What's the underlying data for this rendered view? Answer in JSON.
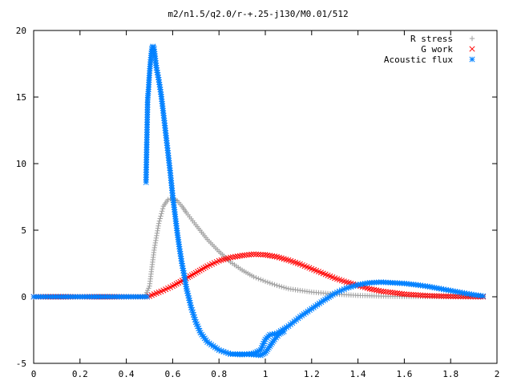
{
  "chart_data": {
    "type": "scatter",
    "title": "m2/n1.5/q2.0/r-+.25-j130/M0.01/512",
    "xlabel": "",
    "ylabel": "",
    "xlim": [
      0,
      2
    ],
    "ylim": [
      -5,
      20
    ],
    "xticks": [
      "0",
      "0.2",
      "0.4",
      "0.6",
      "0.8",
      "1",
      "1.2",
      "1.4",
      "1.6",
      "1.8",
      "2"
    ],
    "yticks": [
      "20",
      "15",
      "10",
      "5",
      "0",
      "-5"
    ],
    "legend_position": "top-right",
    "grid": false,
    "series": [
      {
        "name": "R stress",
        "marker": "plus",
        "color": "#a0a0a0",
        "points": [
          [
            0,
            0
          ],
          [
            0.1,
            0
          ],
          [
            0.2,
            0
          ],
          [
            0.3,
            0
          ],
          [
            0.4,
            0
          ],
          [
            0.48,
            0
          ],
          [
            0.5,
            0.8
          ],
          [
            0.52,
            3.5
          ],
          [
            0.54,
            5.5
          ],
          [
            0.56,
            6.8
          ],
          [
            0.58,
            7.3
          ],
          [
            0.6,
            7.4
          ],
          [
            0.62,
            7.2
          ],
          [
            0.64,
            6.8
          ],
          [
            0.66,
            6.3
          ],
          [
            0.7,
            5.4
          ],
          [
            0.75,
            4.3
          ],
          [
            0.8,
            3.4
          ],
          [
            0.85,
            2.6
          ],
          [
            0.9,
            2.0
          ],
          [
            0.95,
            1.5
          ],
          [
            1.0,
            1.15
          ],
          [
            1.05,
            0.85
          ],
          [
            1.1,
            0.6
          ],
          [
            1.2,
            0.35
          ],
          [
            1.3,
            0.2
          ],
          [
            1.4,
            0.1
          ],
          [
            1.5,
            0.05
          ],
          [
            1.6,
            0.02
          ],
          [
            1.7,
            0.01
          ],
          [
            1.8,
            0
          ],
          [
            1.94,
            0
          ]
        ]
      },
      {
        "name": "G work",
        "marker": "cross",
        "color": "#ff0000",
        "points": [
          [
            0,
            0
          ],
          [
            0.2,
            0
          ],
          [
            0.4,
            0
          ],
          [
            0.49,
            0
          ],
          [
            0.5,
            0.05
          ],
          [
            0.52,
            0.2
          ],
          [
            0.55,
            0.4
          ],
          [
            0.6,
            0.8
          ],
          [
            0.65,
            1.3
          ],
          [
            0.7,
            1.8
          ],
          [
            0.75,
            2.3
          ],
          [
            0.8,
            2.7
          ],
          [
            0.85,
            2.95
          ],
          [
            0.9,
            3.1
          ],
          [
            0.95,
            3.2
          ],
          [
            1.0,
            3.15
          ],
          [
            1.05,
            3.0
          ],
          [
            1.1,
            2.75
          ],
          [
            1.15,
            2.45
          ],
          [
            1.2,
            2.1
          ],
          [
            1.25,
            1.75
          ],
          [
            1.3,
            1.4
          ],
          [
            1.35,
            1.1
          ],
          [
            1.4,
            0.85
          ],
          [
            1.45,
            0.6
          ],
          [
            1.5,
            0.42
          ],
          [
            1.6,
            0.2
          ],
          [
            1.7,
            0.08
          ],
          [
            1.8,
            0.03
          ],
          [
            1.94,
            0
          ]
        ]
      },
      {
        "name": "Acoustic flux",
        "marker": "star",
        "color": "#0080ff",
        "points": [
          [
            0,
            0
          ],
          [
            0.1,
            0
          ],
          [
            0.2,
            0
          ],
          [
            0.3,
            0
          ],
          [
            0.4,
            0
          ],
          [
            0.49,
            0
          ],
          [
            0.485,
            8.6
          ],
          [
            0.492,
            14.8
          ],
          [
            0.495,
            15.4
          ],
          [
            0.5,
            16.8
          ],
          [
            0.505,
            17.8
          ],
          [
            0.51,
            18.6
          ],
          [
            0.515,
            18.8
          ],
          [
            0.52,
            18.6
          ],
          [
            0.525,
            17.9
          ],
          [
            0.53,
            17.2
          ],
          [
            0.54,
            16.3
          ],
          [
            0.55,
            15.2
          ],
          [
            0.56,
            13.8
          ],
          [
            0.57,
            12.3
          ],
          [
            0.58,
            10.8
          ],
          [
            0.59,
            9.3
          ],
          [
            0.6,
            7.6
          ],
          [
            0.61,
            6.2
          ],
          [
            0.62,
            4.8
          ],
          [
            0.63,
            3.6
          ],
          [
            0.64,
            2.5
          ],
          [
            0.65,
            1.6
          ],
          [
            0.66,
            0.6
          ],
          [
            0.68,
            -0.8
          ],
          [
            0.7,
            -1.9
          ],
          [
            0.72,
            -2.7
          ],
          [
            0.75,
            -3.4
          ],
          [
            0.8,
            -4.0
          ],
          [
            0.85,
            -4.3
          ],
          [
            0.9,
            -4.35
          ],
          [
            0.95,
            -4.25
          ],
          [
            0.98,
            -4.0
          ],
          [
            1.0,
            -3.2
          ],
          [
            1.02,
            -2.85
          ],
          [
            1.05,
            -2.75
          ],
          [
            1.1,
            -2.2
          ],
          [
            1.15,
            -1.5
          ],
          [
            1.2,
            -0.9
          ],
          [
            1.25,
            -0.3
          ],
          [
            1.3,
            0.25
          ],
          [
            1.35,
            0.65
          ],
          [
            1.4,
            0.9
          ],
          [
            1.45,
            1.05
          ],
          [
            1.5,
            1.1
          ],
          [
            1.55,
            1.05
          ],
          [
            1.6,
            1.0
          ],
          [
            1.65,
            0.9
          ],
          [
            1.7,
            0.78
          ],
          [
            1.75,
            0.62
          ],
          [
            1.8,
            0.46
          ],
          [
            1.85,
            0.3
          ],
          [
            1.9,
            0.15
          ],
          [
            1.94,
            0.05
          ]
        ],
        "branch_points": [
          [
            0.85,
            -4.3
          ],
          [
            0.9,
            -4.3
          ],
          [
            0.95,
            -4.35
          ],
          [
            0.98,
            -4.4
          ],
          [
            1.0,
            -4.2
          ],
          [
            1.02,
            -3.7
          ],
          [
            1.04,
            -3.2
          ],
          [
            1.06,
            -2.8
          ],
          [
            1.08,
            -2.6
          ]
        ]
      }
    ]
  }
}
